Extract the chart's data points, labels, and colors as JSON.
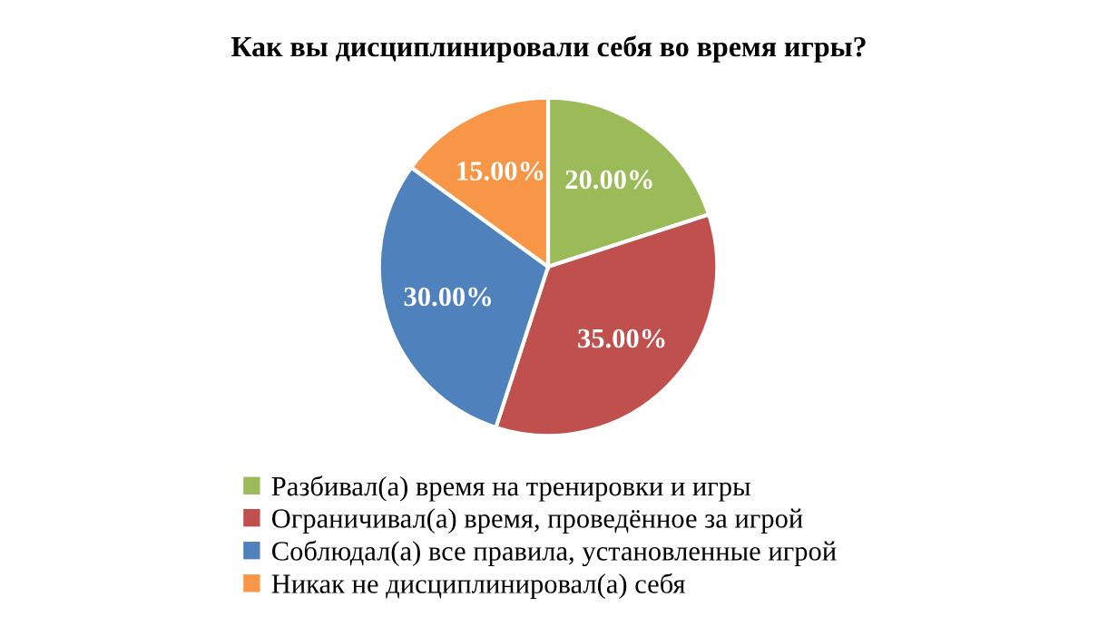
{
  "chart_data": {
    "type": "pie",
    "title": "Как вы дисциплинировали себя во время игры?",
    "categories": [
      "Разбивал(а) время на тренировки и игры",
      "Ограничивал(а) время, проведённое за игрой",
      "Соблюдал(а) все правила, установленные игрой",
      "Никак не дисциплинировал(а) себя"
    ],
    "values": [
      20,
      35,
      30,
      15
    ],
    "value_labels": [
      "20.00%",
      "35.00%",
      "30.00%",
      "15.00%"
    ],
    "colors": [
      "#9bbb59",
      "#c0504d",
      "#4f81bd",
      "#f79646"
    ],
    "legend": "bottom"
  }
}
